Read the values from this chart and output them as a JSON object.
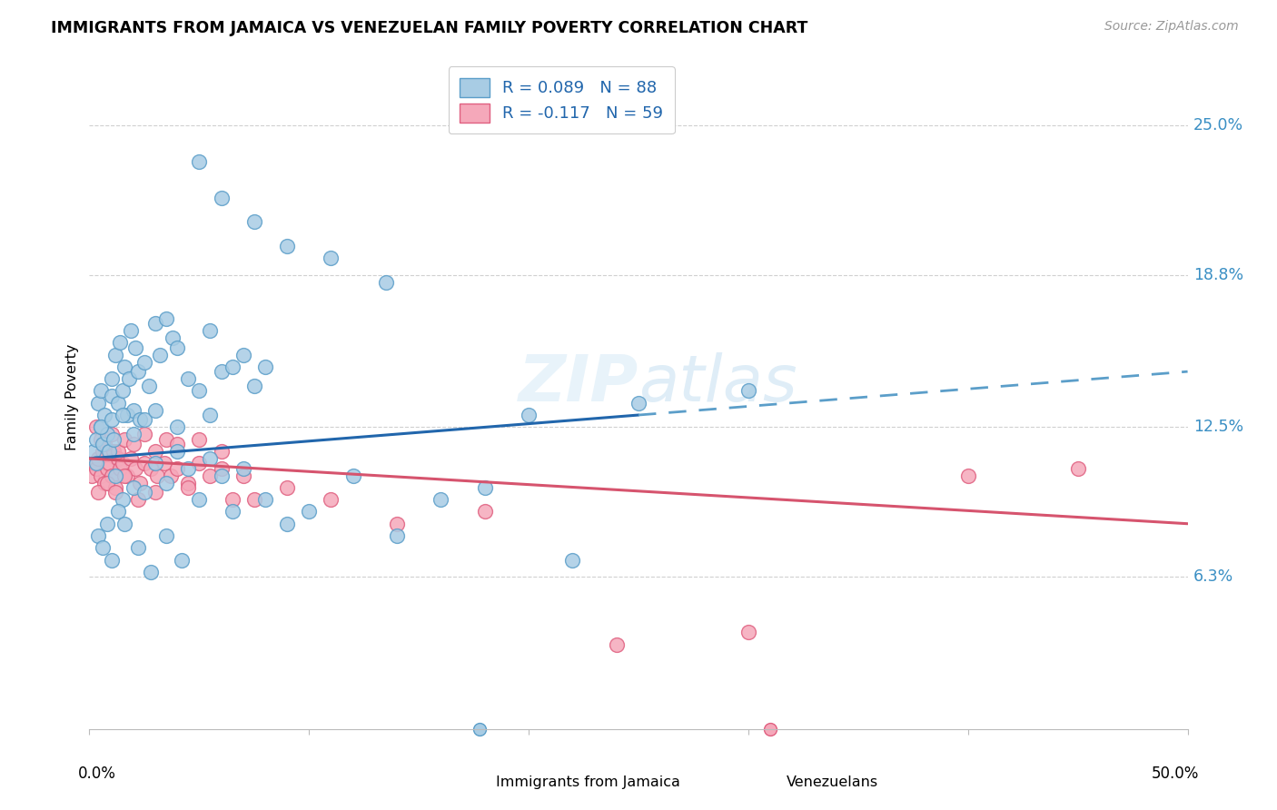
{
  "title": "IMMIGRANTS FROM JAMAICA VS VENEZUELAN FAMILY POVERTY CORRELATION CHART",
  "source": "Source: ZipAtlas.com",
  "ylabel": "Family Poverty",
  "ytick_labels": [
    "6.3%",
    "12.5%",
    "18.8%",
    "25.0%"
  ],
  "ytick_values": [
    6.3,
    12.5,
    18.8,
    25.0
  ],
  "xlim": [
    0.0,
    50.0
  ],
  "ylim": [
    0.0,
    27.5
  ],
  "watermark": "ZIPatlas",
  "blue_scatter_face": "#a8cce4",
  "blue_scatter_edge": "#5b9ec9",
  "pink_scatter_face": "#f5a8ba",
  "pink_scatter_edge": "#e06080",
  "blue_line_color": "#2166ac",
  "blue_dash_color": "#5b9ec9",
  "pink_line_color": "#d6546e",
  "grid_color": "#d0d0d0",
  "legend_r_color": "#2166ac",
  "legend_n_color": "#2166ac",
  "ytick_color": "#3a8fc4",
  "jamaica_x": [
    0.2,
    0.3,
    0.3,
    0.4,
    0.5,
    0.5,
    0.6,
    0.7,
    0.8,
    0.9,
    1.0,
    1.0,
    1.1,
    1.2,
    1.3,
    1.4,
    1.5,
    1.6,
    1.7,
    1.8,
    1.9,
    2.0,
    2.1,
    2.2,
    2.3,
    2.5,
    2.7,
    3.0,
    3.2,
    3.5,
    3.8,
    4.0,
    4.5,
    5.0,
    5.5,
    6.0,
    6.5,
    7.0,
    7.5,
    8.0,
    1.2,
    1.5,
    2.0,
    2.5,
    3.0,
    3.5,
    4.0,
    4.5,
    5.0,
    5.5,
    6.0,
    6.5,
    7.0,
    8.0,
    9.0,
    10.0,
    12.0,
    14.0,
    16.0,
    18.0,
    0.4,
    0.6,
    0.8,
    1.0,
    1.3,
    1.6,
    2.2,
    2.8,
    3.5,
    4.2,
    5.0,
    6.0,
    7.5,
    9.0,
    11.0,
    13.5,
    20.0,
    25.0,
    30.0,
    22.0,
    0.5,
    1.0,
    1.5,
    2.0,
    2.5,
    3.0,
    4.0,
    5.5
  ],
  "jamaica_y": [
    11.5,
    12.0,
    11.0,
    13.5,
    12.5,
    14.0,
    11.8,
    13.0,
    12.2,
    11.5,
    14.5,
    13.8,
    12.0,
    15.5,
    13.5,
    16.0,
    14.0,
    15.0,
    13.0,
    14.5,
    16.5,
    13.2,
    15.8,
    14.8,
    12.8,
    15.2,
    14.2,
    16.8,
    15.5,
    17.0,
    16.2,
    15.8,
    14.5,
    14.0,
    16.5,
    14.8,
    15.0,
    15.5,
    14.2,
    15.0,
    10.5,
    9.5,
    10.0,
    9.8,
    11.0,
    10.2,
    11.5,
    10.8,
    9.5,
    11.2,
    10.5,
    9.0,
    10.8,
    9.5,
    8.5,
    9.0,
    10.5,
    8.0,
    9.5,
    10.0,
    8.0,
    7.5,
    8.5,
    7.0,
    9.0,
    8.5,
    7.5,
    6.5,
    8.0,
    7.0,
    23.5,
    22.0,
    21.0,
    20.0,
    19.5,
    18.5,
    13.0,
    13.5,
    14.0,
    7.0,
    12.5,
    12.8,
    13.0,
    12.2,
    12.8,
    13.2,
    12.5,
    13.0
  ],
  "venezuela_x": [
    0.1,
    0.2,
    0.3,
    0.4,
    0.5,
    0.6,
    0.7,
    0.8,
    0.9,
    1.0,
    1.1,
    1.2,
    1.3,
    1.4,
    1.5,
    1.7,
    1.9,
    2.1,
    2.3,
    2.5,
    2.8,
    3.1,
    3.4,
    3.7,
    4.0,
    4.5,
    5.0,
    5.5,
    6.0,
    7.0,
    0.3,
    0.5,
    0.7,
    1.0,
    1.3,
    1.6,
    2.0,
    2.5,
    3.0,
    3.5,
    4.0,
    5.0,
    6.0,
    7.5,
    9.0,
    11.0,
    14.0,
    18.0,
    24.0,
    30.0,
    0.4,
    0.8,
    1.2,
    1.6,
    2.2,
    3.0,
    4.5,
    6.5,
    40.0,
    45.0
  ],
  "venezuela_y": [
    10.5,
    11.0,
    10.8,
    11.2,
    10.5,
    11.5,
    10.2,
    10.8,
    11.0,
    10.5,
    11.5,
    10.0,
    11.2,
    10.8,
    11.0,
    10.5,
    11.2,
    10.8,
    10.2,
    11.0,
    10.8,
    10.5,
    11.0,
    10.5,
    10.8,
    10.2,
    11.0,
    10.5,
    10.8,
    10.5,
    12.5,
    12.0,
    11.8,
    12.2,
    11.5,
    12.0,
    11.8,
    12.2,
    11.5,
    12.0,
    11.8,
    12.0,
    11.5,
    9.5,
    10.0,
    9.5,
    8.5,
    9.0,
    3.5,
    4.0,
    9.8,
    10.2,
    9.8,
    10.5,
    9.5,
    9.8,
    10.0,
    9.5,
    10.5,
    10.8
  ],
  "blue_reg_x0": 0.0,
  "blue_reg_y0": 11.2,
  "blue_reg_x1_solid": 25.0,
  "blue_reg_y1_solid": 13.0,
  "blue_reg_x2_dash": 50.0,
  "blue_reg_y2_dash": 14.8,
  "pink_reg_x0": 0.0,
  "pink_reg_y0": 11.2,
  "pink_reg_x1": 50.0,
  "pink_reg_y1": 8.5
}
